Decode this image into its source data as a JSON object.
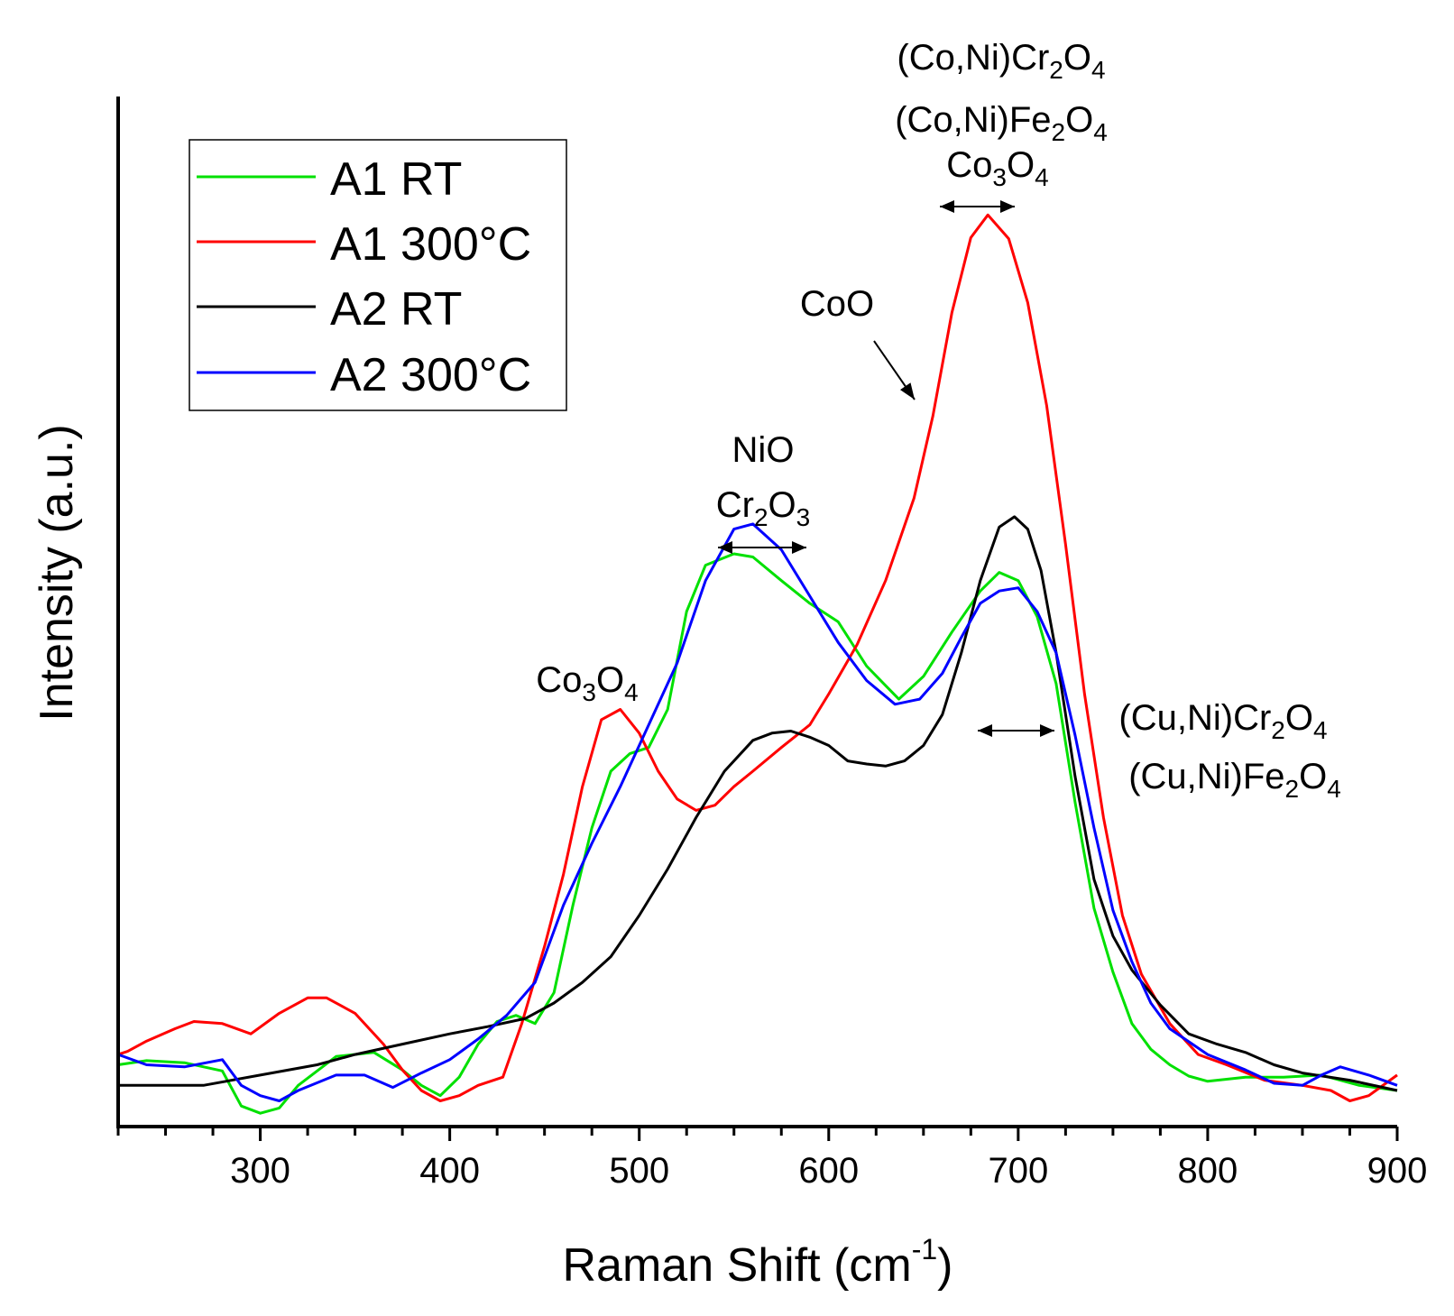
{
  "chart_data": {
    "type": "line",
    "title": "",
    "xlabel": "Raman Shift (cm",
    "xlabel_sup": "-1",
    "xlabel_end": ")",
    "ylabel": "Intensity (a.u.)",
    "xlim": [
      225,
      900
    ],
    "ylim": [
      0,
      1
    ],
    "x_ticks": [
      300,
      400,
      500,
      600,
      700,
      800,
      900
    ],
    "x_ticks_minor_step": 25,
    "grid": false,
    "legend_position": "top-left",
    "series": [
      {
        "name": "A1 RT",
        "color": "#00e000",
        "points": [
          [
            225,
            0.06
          ],
          [
            240,
            0.064
          ],
          [
            260,
            0.062
          ],
          [
            280,
            0.054
          ],
          [
            290,
            0.02
          ],
          [
            300,
            0.013
          ],
          [
            310,
            0.018
          ],
          [
            320,
            0.04
          ],
          [
            340,
            0.068
          ],
          [
            360,
            0.072
          ],
          [
            375,
            0.055
          ],
          [
            385,
            0.04
          ],
          [
            395,
            0.03
          ],
          [
            405,
            0.048
          ],
          [
            415,
            0.08
          ],
          [
            425,
            0.102
          ],
          [
            435,
            0.108
          ],
          [
            445,
            0.1
          ],
          [
            455,
            0.13
          ],
          [
            465,
            0.215
          ],
          [
            475,
            0.29
          ],
          [
            485,
            0.345
          ],
          [
            495,
            0.362
          ],
          [
            505,
            0.368
          ],
          [
            515,
            0.405
          ],
          [
            525,
            0.5
          ],
          [
            535,
            0.545
          ],
          [
            550,
            0.556
          ],
          [
            560,
            0.553
          ],
          [
            575,
            0.53
          ],
          [
            590,
            0.508
          ],
          [
            605,
            0.49
          ],
          [
            620,
            0.447
          ],
          [
            637,
            0.415
          ],
          [
            650,
            0.437
          ],
          [
            665,
            0.48
          ],
          [
            680,
            0.52
          ],
          [
            690,
            0.538
          ],
          [
            700,
            0.53
          ],
          [
            710,
            0.495
          ],
          [
            720,
            0.43
          ],
          [
            730,
            0.315
          ],
          [
            740,
            0.212
          ],
          [
            750,
            0.15
          ],
          [
            760,
            0.1
          ],
          [
            770,
            0.075
          ],
          [
            780,
            0.06
          ],
          [
            790,
            0.049
          ],
          [
            800,
            0.044
          ],
          [
            820,
            0.048
          ],
          [
            840,
            0.048
          ],
          [
            860,
            0.05
          ],
          [
            880,
            0.04
          ],
          [
            900,
            0.035
          ]
        ]
      },
      {
        "name": "A1 300°C",
        "color": "#ff0000",
        "points": [
          [
            225,
            0.07
          ],
          [
            230,
            0.073
          ],
          [
            240,
            0.083
          ],
          [
            255,
            0.095
          ],
          [
            265,
            0.102
          ],
          [
            280,
            0.1
          ],
          [
            295,
            0.09
          ],
          [
            310,
            0.11
          ],
          [
            325,
            0.125
          ],
          [
            335,
            0.125
          ],
          [
            350,
            0.11
          ],
          [
            365,
            0.08
          ],
          [
            375,
            0.055
          ],
          [
            385,
            0.035
          ],
          [
            395,
            0.025
          ],
          [
            405,
            0.03
          ],
          [
            415,
            0.04
          ],
          [
            428,
            0.048
          ],
          [
            438,
            0.1
          ],
          [
            450,
            0.175
          ],
          [
            460,
            0.245
          ],
          [
            470,
            0.33
          ],
          [
            480,
            0.395
          ],
          [
            490,
            0.405
          ],
          [
            500,
            0.382
          ],
          [
            510,
            0.345
          ],
          [
            520,
            0.318
          ],
          [
            530,
            0.307
          ],
          [
            540,
            0.312
          ],
          [
            550,
            0.33
          ],
          [
            560,
            0.345
          ],
          [
            575,
            0.368
          ],
          [
            590,
            0.39
          ],
          [
            600,
            0.42
          ],
          [
            615,
            0.468
          ],
          [
            630,
            0.53
          ],
          [
            645,
            0.61
          ],
          [
            655,
            0.69
          ],
          [
            665,
            0.79
          ],
          [
            675,
            0.863
          ],
          [
            684,
            0.885
          ],
          [
            695,
            0.862
          ],
          [
            705,
            0.8
          ],
          [
            715,
            0.7
          ],
          [
            725,
            0.565
          ],
          [
            735,
            0.42
          ],
          [
            745,
            0.3
          ],
          [
            755,
            0.205
          ],
          [
            765,
            0.148
          ],
          [
            780,
            0.1
          ],
          [
            795,
            0.07
          ],
          [
            810,
            0.06
          ],
          [
            830,
            0.045
          ],
          [
            850,
            0.04
          ],
          [
            865,
            0.035
          ],
          [
            875,
            0.025
          ],
          [
            885,
            0.03
          ],
          [
            900,
            0.05
          ]
        ]
      },
      {
        "name": "A2 RT",
        "color": "#000000",
        "points": [
          [
            225,
            0.04
          ],
          [
            250,
            0.04
          ],
          [
            270,
            0.04
          ],
          [
            300,
            0.05
          ],
          [
            330,
            0.06
          ],
          [
            350,
            0.07
          ],
          [
            375,
            0.08
          ],
          [
            400,
            0.09
          ],
          [
            420,
            0.097
          ],
          [
            440,
            0.105
          ],
          [
            455,
            0.12
          ],
          [
            470,
            0.14
          ],
          [
            485,
            0.165
          ],
          [
            500,
            0.205
          ],
          [
            515,
            0.25
          ],
          [
            530,
            0.3
          ],
          [
            545,
            0.345
          ],
          [
            560,
            0.375
          ],
          [
            570,
            0.382
          ],
          [
            580,
            0.384
          ],
          [
            590,
            0.378
          ],
          [
            600,
            0.37
          ],
          [
            610,
            0.355
          ],
          [
            620,
            0.352
          ],
          [
            630,
            0.35
          ],
          [
            640,
            0.355
          ],
          [
            650,
            0.37
          ],
          [
            660,
            0.4
          ],
          [
            670,
            0.46
          ],
          [
            680,
            0.53
          ],
          [
            690,
            0.582
          ],
          [
            698,
            0.592
          ],
          [
            705,
            0.58
          ],
          [
            712,
            0.54
          ],
          [
            720,
            0.46
          ],
          [
            730,
            0.34
          ],
          [
            740,
            0.24
          ],
          [
            750,
            0.185
          ],
          [
            760,
            0.152
          ],
          [
            775,
            0.118
          ],
          [
            790,
            0.09
          ],
          [
            805,
            0.08
          ],
          [
            820,
            0.072
          ],
          [
            835,
            0.06
          ],
          [
            850,
            0.052
          ],
          [
            875,
            0.045
          ],
          [
            900,
            0.035
          ]
        ]
      },
      {
        "name": "A2 300°C",
        "color": "#0000ff",
        "points": [
          [
            225,
            0.07
          ],
          [
            240,
            0.06
          ],
          [
            260,
            0.058
          ],
          [
            280,
            0.065
          ],
          [
            290,
            0.04
          ],
          [
            300,
            0.03
          ],
          [
            310,
            0.025
          ],
          [
            320,
            0.035
          ],
          [
            340,
            0.05
          ],
          [
            355,
            0.05
          ],
          [
            370,
            0.038
          ],
          [
            385,
            0.052
          ],
          [
            400,
            0.065
          ],
          [
            415,
            0.085
          ],
          [
            430,
            0.108
          ],
          [
            445,
            0.14
          ],
          [
            460,
            0.215
          ],
          [
            475,
            0.275
          ],
          [
            490,
            0.33
          ],
          [
            505,
            0.39
          ],
          [
            520,
            0.45
          ],
          [
            535,
            0.53
          ],
          [
            550,
            0.58
          ],
          [
            560,
            0.585
          ],
          [
            575,
            0.56
          ],
          [
            590,
            0.515
          ],
          [
            605,
            0.47
          ],
          [
            620,
            0.433
          ],
          [
            635,
            0.41
          ],
          [
            648,
            0.415
          ],
          [
            660,
            0.44
          ],
          [
            670,
            0.475
          ],
          [
            680,
            0.508
          ],
          [
            690,
            0.52
          ],
          [
            700,
            0.523
          ],
          [
            710,
            0.5
          ],
          [
            720,
            0.46
          ],
          [
            730,
            0.38
          ],
          [
            740,
            0.29
          ],
          [
            750,
            0.21
          ],
          [
            760,
            0.16
          ],
          [
            770,
            0.12
          ],
          [
            780,
            0.095
          ],
          [
            800,
            0.07
          ],
          [
            820,
            0.055
          ],
          [
            835,
            0.042
          ],
          [
            850,
            0.04
          ],
          [
            860,
            0.05
          ],
          [
            870,
            0.058
          ],
          [
            885,
            0.05
          ],
          [
            900,
            0.04
          ]
        ]
      }
    ],
    "annotations": [
      {
        "id": "spinel-co-ni",
        "lines": [
          "(Co,Ni)Cr2O4",
          "(Co,Ni)Fe2O4",
          "Co3O4"
        ],
        "x": [
          665,
          690
        ]
      },
      {
        "id": "coo",
        "lines": [
          "CoO"
        ],
        "x": null
      },
      {
        "id": "nio-cr2o3",
        "lines": [
          "NiO",
          "Cr2O3"
        ],
        "x": [
          545,
          590
        ]
      },
      {
        "id": "co3o4-left",
        "lines": [
          "Co3O4"
        ],
        "x": null
      },
      {
        "id": "spinel-cu-ni",
        "lines": [
          "(Cu,Ni)Cr2O4",
          "(Cu,Ni)Fe2O4"
        ],
        "x": [
          680,
          722
        ]
      }
    ]
  }
}
